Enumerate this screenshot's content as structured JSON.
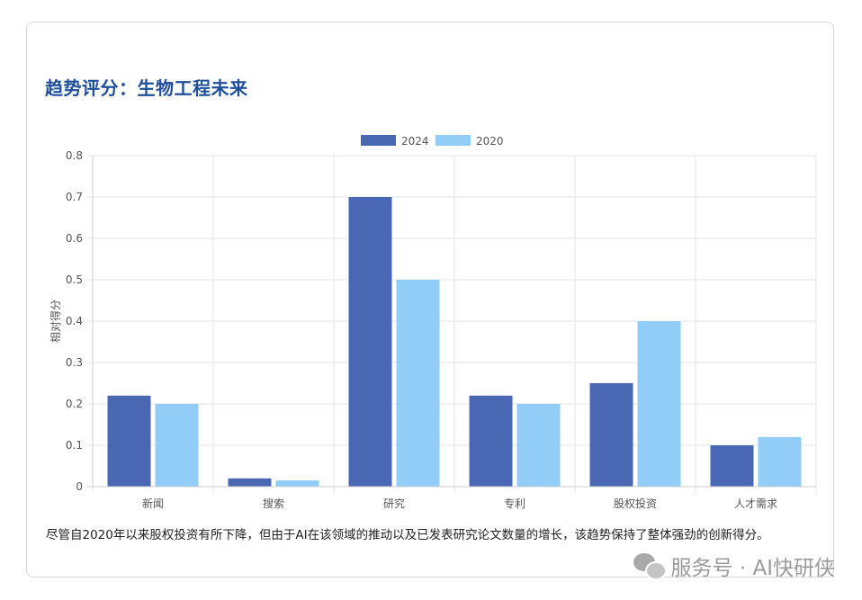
{
  "title": "趋势评分：生物工程未来",
  "caption": "尽管自2020年以来股权投资有所下降，但由于AI在该领域的推动以及已发表研究论文数量的增长，该趋势保持了整体强劲的创新得分。",
  "watermark": {
    "icon": "wechat-icon",
    "text": "服务号 · AI快研侠"
  },
  "colors": {
    "series_2024": "#4a67b3",
    "series_2020": "#92cdf7",
    "title": "#1f4f9c"
  },
  "chart_data": {
    "type": "bar",
    "title": "趋势评分：生物工程未来",
    "xlabel": "",
    "ylabel": "相对得分",
    "ylim": [
      0,
      0.8
    ],
    "yticks": [
      "0",
      "0.1",
      "0.2",
      "0.3",
      "0.4",
      "0.5",
      "0.6",
      "0.7",
      "0.8"
    ],
    "grid": true,
    "legend_position": "top-center",
    "categories": [
      "新闻",
      "搜索",
      "研究",
      "专利",
      "股权投资",
      "人才需求"
    ],
    "series": [
      {
        "name": "2024",
        "values": [
          0.22,
          0.02,
          0.7,
          0.22,
          0.25,
          0.1
        ]
      },
      {
        "name": "2020",
        "values": [
          0.2,
          0.015,
          0.5,
          0.2,
          0.4,
          0.12
        ]
      }
    ]
  }
}
